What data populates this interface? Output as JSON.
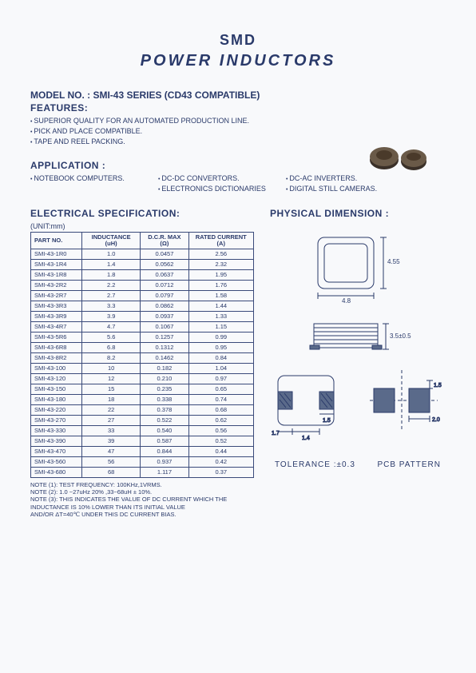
{
  "title": {
    "line1": "SMD",
    "line2": "POWER   INDUCTORS"
  },
  "model_line": "MODEL NO.   : SMI-43 SERIES (CD43 COMPATIBLE)",
  "features": {
    "heading": "FEATURES:",
    "items": [
      "SUPERIOR QUALITY FOR AN AUTOMATED PRODUCTION LINE.",
      "PICK AND PLACE COMPATIBLE.",
      "TAPE AND REEL PACKING."
    ]
  },
  "application": {
    "heading": "APPLICATION :",
    "items": [
      "NOTEBOOK COMPUTERS.",
      "DC-DC CONVERTORS.",
      "DC-AC INVERTERS.",
      "",
      "ELECTRONICS DICTIONARIES",
      "DIGITAL STILL CAMERAS."
    ]
  },
  "elec_spec_heading": "ELECTRICAL SPECIFICATION:",
  "phys_dim_heading": "PHYSICAL DIMENSION :",
  "unit_label": "(UNIT:mm)",
  "table": {
    "headers": [
      "PART    NO.",
      "INDUCTANCE (uH)",
      "D.C.R. MAX (Ω)",
      "RATED CURRENT (A)"
    ],
    "rows": [
      [
        "SMI-43-1R0",
        "1.0",
        "0.0457",
        "2.56"
      ],
      [
        "SMI-43-1R4",
        "1.4",
        "0.0562",
        "2.32"
      ],
      [
        "SMI-43-1R8",
        "1.8",
        "0.0637",
        "1.95"
      ],
      [
        "SMI-43-2R2",
        "2.2",
        "0.0712",
        "1.76"
      ],
      [
        "SMI-43-2R7",
        "2.7",
        "0.0797",
        "1.58"
      ],
      [
        "SMI-43-3R3",
        "3.3",
        "0.0862",
        "1.44"
      ],
      [
        "SMI-43-3R9",
        "3.9",
        "0.0937",
        "1.33"
      ],
      [
        "SMI-43-4R7",
        "4.7",
        "0.1067",
        "1.15"
      ],
      [
        "SMI-43-5R6",
        "5.6",
        "0.1257",
        "0.99"
      ],
      [
        "SMI-43-6R8",
        "6.8",
        "0.1312",
        "0.95"
      ],
      [
        "SMI-43-8R2",
        "8.2",
        "0.1462",
        "0.84"
      ],
      [
        "SMI-43-100",
        "10",
        "0.182",
        "1.04"
      ],
      [
        "SMI-43-120",
        "12",
        "0.210",
        "0.97"
      ],
      [
        "SMI-43-150",
        "15",
        "0.235",
        "0.65"
      ],
      [
        "SMI-43-180",
        "18",
        "0.338",
        "0.74"
      ],
      [
        "SMI-43-220",
        "22",
        "0.378",
        "0.68"
      ],
      [
        "SMI-43-270",
        "27",
        "0.522",
        "0.62"
      ],
      [
        "SMI-43-330",
        "33",
        "0.540",
        "0.56"
      ],
      [
        "SMI-43-390",
        "39",
        "0.587",
        "0.52"
      ],
      [
        "SMI-43-470",
        "47",
        "0.844",
        "0.44"
      ],
      [
        "SMI-43-560",
        "56",
        "0.937",
        "0.42"
      ],
      [
        "SMI-43-680",
        "68",
        "1.117",
        "0.37"
      ]
    ]
  },
  "notes": [
    "NOTE (1): TEST FREQUENCY: 100KHz,1VRMS.",
    "NOTE (2): 1.0 ~27uHz 20%  ,33~68uH ± 10%.",
    "NOTE (3): THIS INDICATES THE VALUE OF DC CURRENT WHICH THE INDUCTANCE IS 10% LOWER THAN ITS INITIAL VALUE",
    "                AND/OR  ΔT=40℃  UNDER THIS DC CURRENT BIAS."
  ],
  "diagrams": {
    "topview": {
      "w": 4.8,
      "h": 4.55,
      "label_w": "4.8",
      "label_h": "4.55"
    },
    "sideview": {
      "h_label": "3.5±0.5"
    },
    "pcb": {
      "dim_a": "1.5",
      "dim_b": "2.0",
      "dim_c": "1.4",
      "dim_d": "1.7",
      "dim_e": "1.5"
    },
    "tolerance_label": "TOLERANCE :±0.3",
    "pcb_label": "PCB PATTERN",
    "stroke": "#2a3a6a",
    "dim_stroke": "#2a3a6a",
    "fill_pad": "#5a6a8a"
  },
  "colors": {
    "text": "#2a3a6a",
    "bg": "#f8f9fb"
  }
}
